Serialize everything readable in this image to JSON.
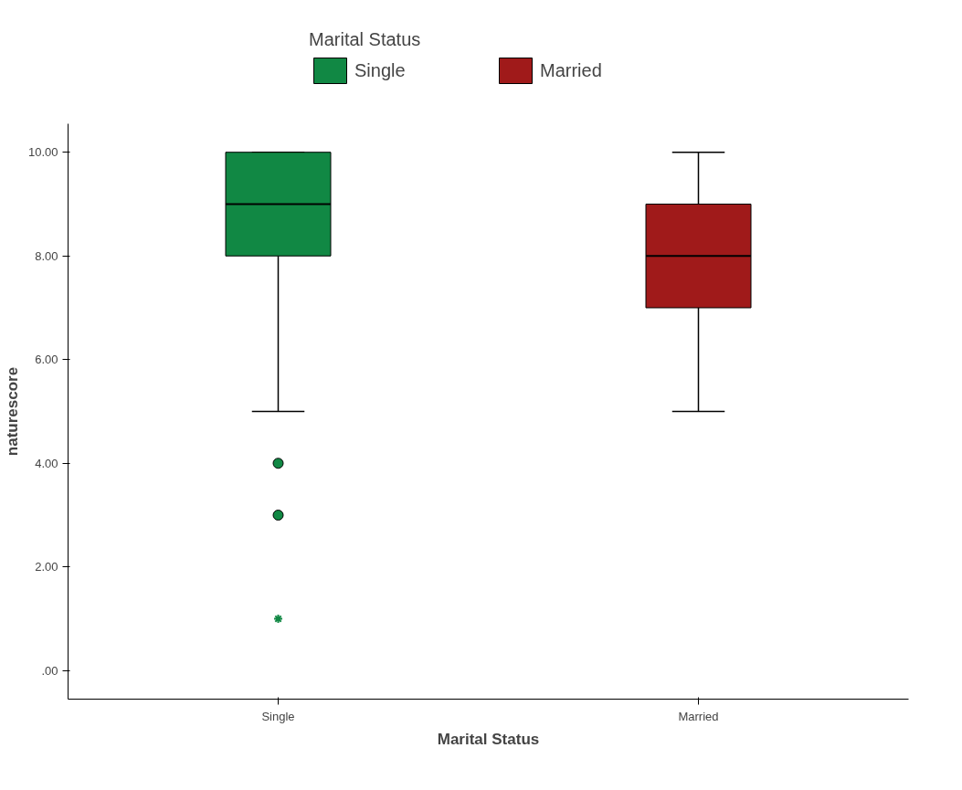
{
  "chart_data": {
    "type": "box",
    "legend_title": "Marital Status",
    "legend": "top",
    "xlabel": "Marital Status",
    "ylabel": "naturescore",
    "categories": [
      "Single",
      "Married"
    ],
    "series": [
      {
        "name": "Single",
        "color": "#118844",
        "boxes": [
          {
            "low": 5,
            "q1": 8,
            "median": 9,
            "q3": 10,
            "high": 10,
            "outliers": [
              4,
              3,
              1
            ]
          },
          null
        ]
      },
      {
        "name": "Married",
        "color": "#a01a1a",
        "boxes": [
          null,
          {
            "low": 5,
            "q1": 7,
            "median": 8,
            "q3": 9,
            "high": 10
          }
        ]
      }
    ],
    "ylim": [
      -0.55,
      10.55
    ],
    "yticks": [
      {
        "value": 0,
        "label": ".00"
      },
      {
        "value": 2,
        "label": "2.00"
      },
      {
        "value": 4,
        "label": "4.00"
      },
      {
        "value": 6,
        "label": "6.00"
      },
      {
        "value": 8,
        "label": "8.00"
      },
      {
        "value": 10,
        "label": "10.00"
      }
    ],
    "grid": false
  }
}
